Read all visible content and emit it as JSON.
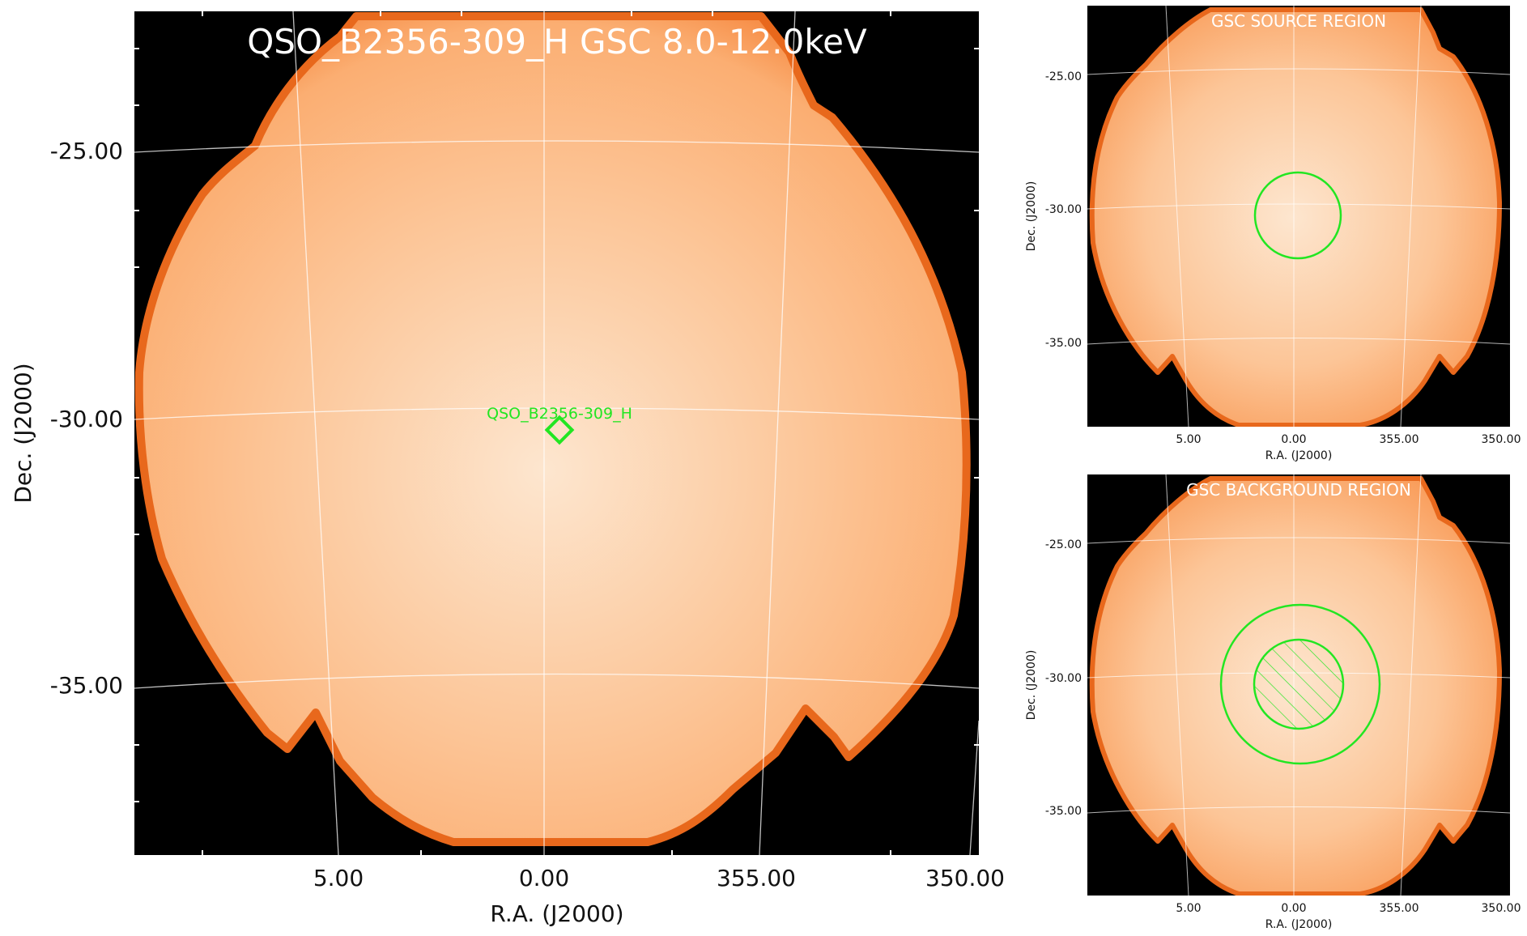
{
  "main_panel": {
    "title": "QSO_B2356-309_H GSC 8.0-12.0keV",
    "source_label": "QSO_B2356-309_H",
    "xlabel": "R.A. (J2000)",
    "ylabel": "Dec. (J2000)",
    "x_ticks": [
      "5.00",
      "0.00",
      "355.00",
      "350.00"
    ],
    "y_ticks": [
      "-25.00",
      "-30.00",
      "-35.00"
    ]
  },
  "source_panel": {
    "title": "GSC SOURCE REGION",
    "xlabel": "R.A. (J2000)",
    "ylabel": "Dec. (J2000)",
    "x_ticks": [
      "5.00",
      "0.00",
      "355.00",
      "350.00"
    ],
    "y_ticks": [
      "-25.00",
      "-30.00",
      "-35.00"
    ]
  },
  "background_panel": {
    "title": "GSC BACKGROUND REGION",
    "xlabel": "R.A. (J2000)",
    "ylabel": "Dec. (J2000)",
    "x_ticks": [
      "5.00",
      "0.00",
      "355.00",
      "350.00"
    ],
    "y_ticks": [
      "-25.00",
      "-30.00",
      "-35.00"
    ]
  },
  "colors": {
    "region": "#22e622",
    "map_bright": "#fde6cf",
    "map_mid": "#fbb27a",
    "map_edge": "#f07c2a",
    "background": "#000000",
    "grid": "#ffffff"
  }
}
